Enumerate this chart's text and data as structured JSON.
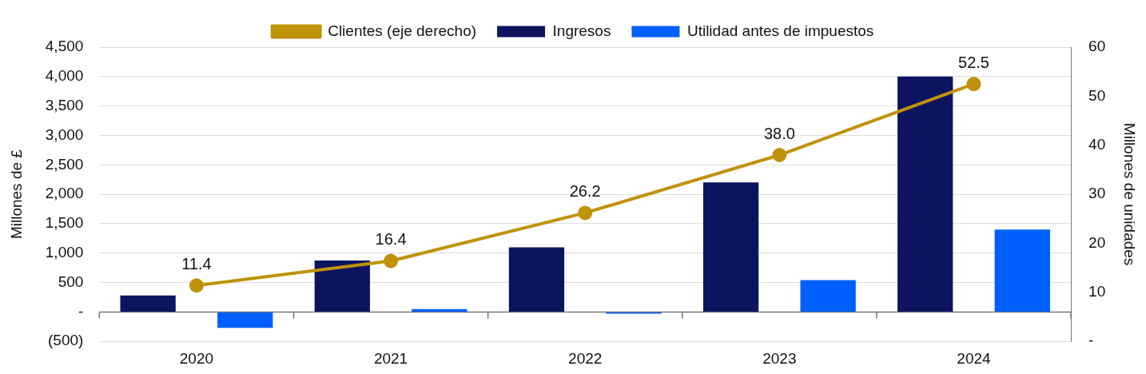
{
  "chart_data": {
    "type": "bar",
    "categories": [
      "2020",
      "2021",
      "2022",
      "2023",
      "2024"
    ],
    "series": [
      {
        "name": "Ingresos",
        "color": "#0c1460",
        "values": [
          280,
          875,
          1100,
          2200,
          4000
        ]
      },
      {
        "name": "Utilidad antes de impuestos",
        "color": "#0060ff",
        "values": [
          -270,
          50,
          -30,
          540,
          1400
        ]
      },
      {
        "name": "Clientes (eje derecho)",
        "type": "line",
        "axis": "y2",
        "color": "#c0920a",
        "marker": "circle",
        "values": [
          11.4,
          16.4,
          26.2,
          38.0,
          52.5
        ],
        "value_labels": [
          "11.4",
          "16.4",
          "26.2",
          "38.0",
          "52.5"
        ]
      }
    ],
    "ylabel": "Millones de £",
    "y2label": "Millones de unidades",
    "ylim": [
      -500,
      4500
    ],
    "yticks": [
      {
        "value": -500,
        "label": "(500)"
      },
      {
        "value": 0,
        "label": "-"
      },
      {
        "value": 500,
        "label": "500"
      },
      {
        "value": 1000,
        "label": "1,000"
      },
      {
        "value": 1500,
        "label": "1,500"
      },
      {
        "value": 2000,
        "label": "2,000"
      },
      {
        "value": 2500,
        "label": "2,500"
      },
      {
        "value": 3000,
        "label": "3,000"
      },
      {
        "value": 3500,
        "label": "3,500"
      },
      {
        "value": 4000,
        "label": "4,000"
      },
      {
        "value": 4500,
        "label": "4,500"
      }
    ],
    "y2lim": [
      0,
      60
    ],
    "y2ticks": [
      {
        "value": 0,
        "label": "-"
      },
      10,
      20,
      30,
      40,
      50,
      60
    ],
    "grid": "y",
    "legend": "top"
  }
}
